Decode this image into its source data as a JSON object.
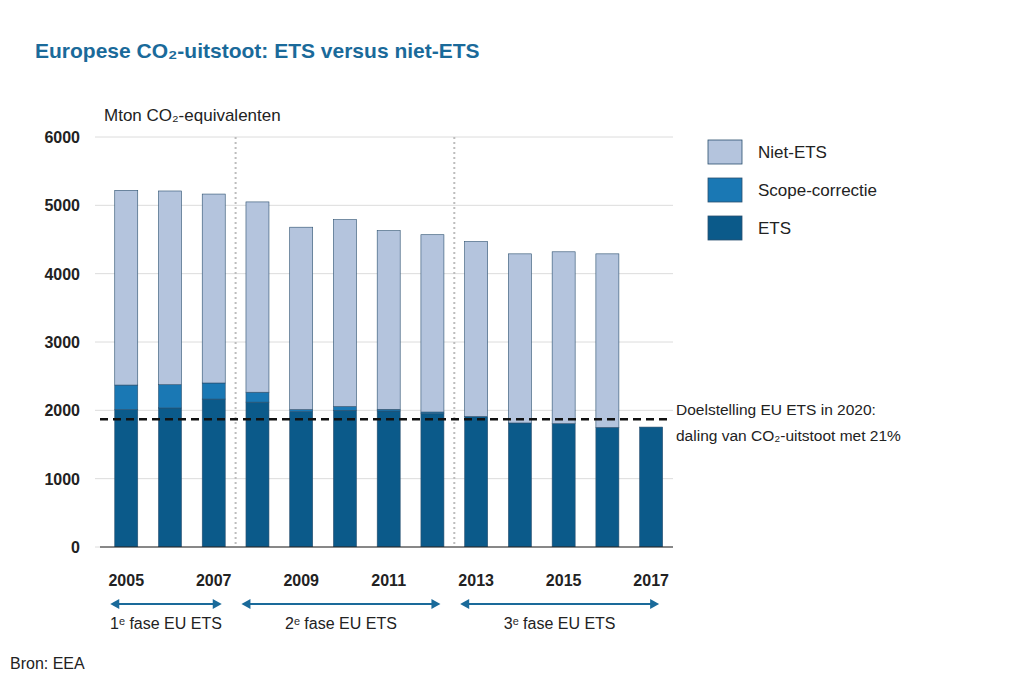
{
  "chart_data": {
    "type": "bar",
    "stacked": true,
    "title": "Europese CO₂-uitstoot: ETS versus niet-ETS",
    "y_label": "Mton CO₂-equivalenten",
    "x": [
      2005,
      2006,
      2007,
      2008,
      2009,
      2010,
      2011,
      2012,
      2013,
      2014,
      2015,
      2016,
      2017
    ],
    "xlim": [
      2004.4,
      2017.5
    ],
    "xticks": [
      2005,
      2007,
      2009,
      2011,
      2013,
      2015,
      2017
    ],
    "ylim": [
      0,
      6000
    ],
    "yticks": [
      0,
      1000,
      2000,
      3000,
      4000,
      5000,
      6000
    ],
    "grid": true,
    "legend": "right",
    "series": [
      {
        "name": "ETS",
        "color": "#0b5a8a",
        "values": [
          2010,
          2035,
          2165,
          2120,
          1980,
          2000,
          1990,
          1950,
          1910,
          1815,
          1805,
          1750,
          1755
        ]
      },
      {
        "name": "Scope-correctie",
        "color": "#1a78b4",
        "values": [
          360,
          340,
          235,
          145,
          30,
          55,
          25,
          25,
          0,
          0,
          0,
          0,
          null
        ]
      },
      {
        "name": "Niet-ETS",
        "color": "#b4c4dd",
        "values": [
          2850,
          2835,
          2765,
          2785,
          2670,
          2735,
          2615,
          2595,
          2560,
          2475,
          2515,
          2540,
          null
        ]
      }
    ],
    "annotations": [
      {
        "type": "hline",
        "y": 1870,
        "line_style": "dashed",
        "text": [
          "Doelstelling EU ETS in 2020:",
          "daling van CO₂-uitstoot met 21%"
        ]
      }
    ],
    "phases": [
      {
        "label": "1ᵉ fase EU ETS",
        "start": 2005,
        "end": 2007
      },
      {
        "label": "2ᵉ fase EU ETS",
        "start": 2008,
        "end": 2012
      },
      {
        "label": "3ᵉ fase EU ETS",
        "start": 2013,
        "end": 2017
      }
    ],
    "source": "Bron: EEA"
  }
}
